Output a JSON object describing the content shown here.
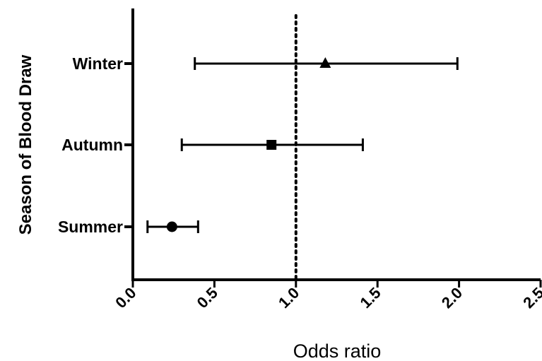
{
  "chart_data": {
    "type": "scatter",
    "title": "",
    "xlabel": "Odds ratio",
    "ylabel": "Season of Blood Draw",
    "xlim": [
      0,
      2.5
    ],
    "x_ticks": [
      "0.0",
      "0.5",
      "1.0",
      "1.5",
      "2.0",
      "2.5"
    ],
    "x_tick_values": [
      0,
      0.5,
      1.0,
      1.5,
      2.0,
      2.5
    ],
    "reference_line": {
      "x": 1.0,
      "style": "dotted"
    },
    "grid": false,
    "categories": [
      "Winter",
      "Autumn",
      "Summer"
    ],
    "points": [
      {
        "category": "Winter",
        "odds_ratio": 1.18,
        "ci_low": 0.38,
        "ci_high": 1.99,
        "marker": "triangle"
      },
      {
        "category": "Autumn",
        "odds_ratio": 0.85,
        "ci_low": 0.3,
        "ci_high": 1.41,
        "marker": "square"
      },
      {
        "category": "Summer",
        "odds_ratio": 0.24,
        "ci_low": 0.09,
        "ci_high": 0.4,
        "marker": "circle"
      }
    ],
    "colors": {
      "marks": "#000000"
    }
  }
}
